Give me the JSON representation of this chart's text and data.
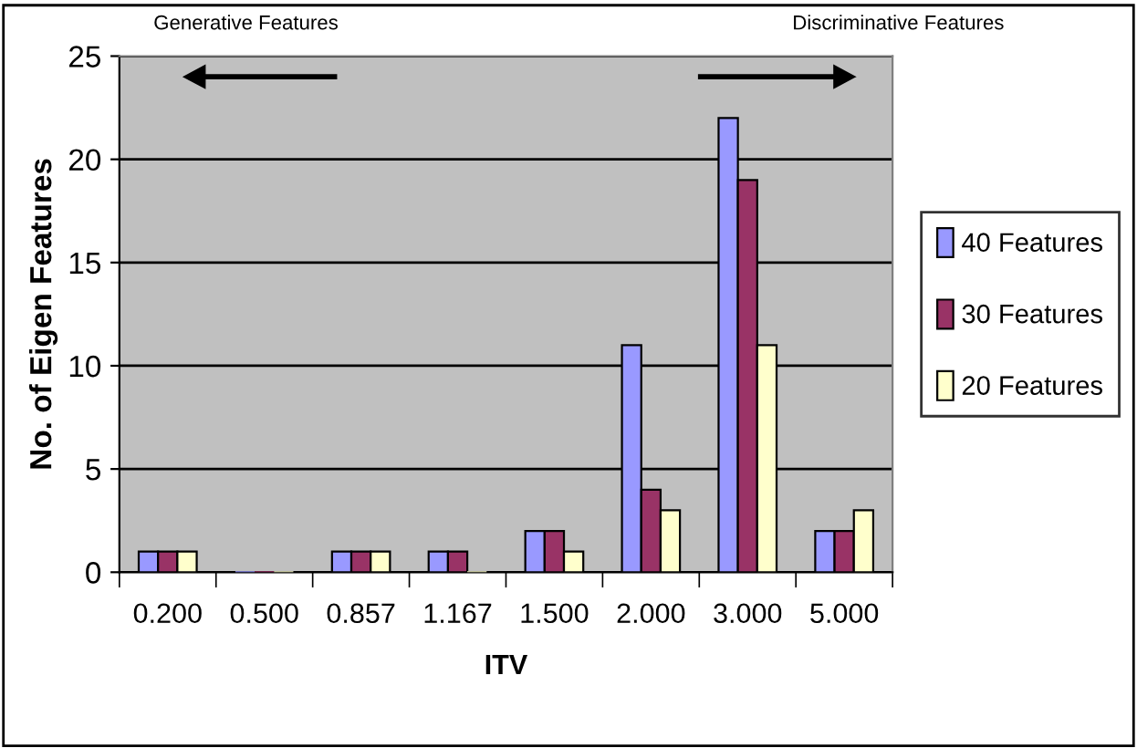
{
  "chart_data": {
    "type": "bar",
    "xlabel": "ITV",
    "ylabel": "No. of Eigen Features",
    "categories": [
      "0.200",
      "0.500",
      "0.857",
      "1.167",
      "1.500",
      "2.000",
      "3.000",
      "5.000"
    ],
    "series": [
      {
        "name": "40 Features",
        "color": "#9999ff",
        "values": [
          1,
          0,
          1,
          1,
          2,
          11,
          22,
          2
        ]
      },
      {
        "name": "30 Features",
        "color": "#993366",
        "values": [
          1,
          0,
          1,
          1,
          2,
          4,
          19,
          2
        ]
      },
      {
        "name": "20 Features",
        "color": "#ffffcc",
        "values": [
          1,
          0,
          1,
          0,
          1,
          3,
          11,
          3
        ]
      }
    ],
    "ylim": [
      0,
      25
    ],
    "yticks": [
      0,
      5,
      10,
      15,
      20,
      25
    ],
    "grid": "y",
    "legend": "right",
    "annotations": [
      "Generative Features",
      "Discriminative Features"
    ]
  }
}
